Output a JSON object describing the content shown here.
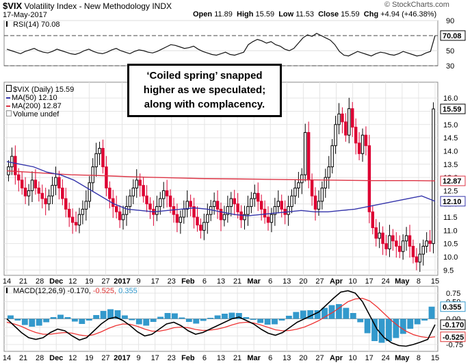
{
  "header": {
    "symbol": "$VIX",
    "name": "Volatility Index - New Methodology",
    "exchange": "INDX",
    "date": "17-May-2017",
    "open_label": "Open",
    "open": "11.89",
    "high_label": "High",
    "high": "15.59",
    "low_label": "Low",
    "low": "11.53",
    "close_label": "Close",
    "close": "15.59",
    "chg_label": "Chg",
    "chg": "+4.94 (+46.38%)",
    "brand": "© StockCharts.com"
  },
  "colors": {
    "up": "#000000",
    "down": "#dd0033",
    "ma50": "#3333aa",
    "ma200": "#dd3344",
    "rsi": "#111111",
    "macd_line": "#000000",
    "signal_line": "#ee3333",
    "histogram": "#3399cc"
  },
  "callout": {
    "line1": "‘Coiled spring’ snapped",
    "line2": "higher as we speculated;",
    "line3": "along with complacency."
  },
  "legend": {
    "rsi": "RSI(14) 70.08",
    "vix": "$VIX (Daily) 15.59",
    "ma50": "MA(50) 12.10",
    "ma200": "MA(200) 12.87",
    "volume": "Volume undef",
    "macd_prefix": "MACD(12,26,9) -0.170,",
    "macd_signal": "-0.525,",
    "macd_hist": "0.355"
  },
  "chart_data": [
    {
      "type": "candlestick",
      "title": "$VIX Volatility Index - New Methodology",
      "ylim": [
        9.3,
        16.6
      ],
      "y_ticks": [
        "9.5",
        "10.0",
        "10.5",
        "11.0",
        "11.5",
        "12.0",
        "12.5",
        "13.0",
        "13.5",
        "14.0",
        "14.5",
        "15.0",
        "15.5",
        "16.0"
      ],
      "x_ticks": [
        "14",
        "21",
        "28",
        "Dec",
        "12",
        "19",
        "27",
        "2017",
        "9",
        "17",
        "23",
        "Feb",
        "6",
        "13",
        "21",
        "Mar",
        "6",
        "13",
        "20",
        "27",
        "Apr",
        "10",
        "17",
        "24",
        "May",
        "8",
        "15"
      ],
      "closes": [
        13.4,
        13.8,
        13.1,
        12.9,
        12.6,
        12.3,
        12.5,
        12.9,
        12.6,
        12.4,
        12.2,
        12.0,
        12.3,
        12.7,
        13.0,
        12.6,
        12.2,
        11.8,
        11.5,
        11.3,
        11.2,
        11.6,
        11.8,
        12.1,
        12.8,
        13.4,
        13.9,
        14.1,
        13.4,
        12.6,
        12.2,
        11.9,
        11.7,
        11.4,
        11.6,
        11.9,
        12.3,
        12.6,
        12.9,
        12.7,
        12.3,
        12.0,
        11.8,
        11.6,
        11.9,
        12.2,
        12.5,
        12.3,
        11.9,
        11.6,
        11.3,
        11.5,
        11.8,
        12.1,
        11.9,
        11.5,
        11.2,
        11.0,
        11.3,
        11.6,
        11.9,
        12.1,
        11.8,
        11.4,
        11.6,
        11.9,
        12.2,
        12.0,
        11.7,
        11.4,
        11.6,
        11.9,
        12.2,
        12.4,
        12.1,
        11.8,
        11.5,
        11.3,
        11.6,
        11.9,
        12.1,
        11.8,
        11.6,
        11.9,
        12.3,
        12.6,
        12.8,
        13.1,
        14.7,
        12.9,
        12.3,
        11.8,
        12.1,
        12.6,
        13.0,
        13.4,
        14.2,
        15.0,
        15.4,
        15.1,
        14.6,
        15.6,
        14.9,
        14.3,
        13.9,
        14.6,
        14.2,
        11.7,
        11.1,
        10.7,
        10.9,
        10.5,
        10.3,
        10.8,
        10.6,
        10.4,
        10.2,
        10.6,
        10.8,
        10.4,
        10.0,
        9.8,
        10.1,
        10.4,
        10.6,
        10.5,
        15.59
      ],
      "ma50": [
        13.6,
        13.5,
        13.4,
        13.2,
        13.1,
        12.9,
        12.6,
        12.3,
        12.0,
        11.8,
        11.75,
        11.7,
        11.75,
        11.8,
        11.85,
        11.8,
        11.7,
        11.6,
        11.55,
        11.6,
        11.65,
        11.7,
        11.75,
        11.7,
        11.7,
        11.75,
        11.8,
        11.9,
        12.0,
        12.1,
        12.2,
        12.3,
        12.1
      ],
      "ma200": [
        13.25,
        13.2,
        13.15,
        13.1,
        13.08,
        13.05,
        13.02,
        13.0,
        12.98,
        12.96,
        12.95,
        12.94,
        12.93,
        12.92,
        12.91,
        12.9,
        12.89,
        12.88,
        12.88,
        12.88,
        12.87
      ],
      "last_close": "15.59",
      "last_ma200": "12.87",
      "last_ma50": "12.10"
    },
    {
      "type": "line",
      "title": "RSI(14) 70.08",
      "ylim": [
        30,
        90
      ],
      "y_ticks": [
        "90",
        "70",
        "50",
        "30"
      ],
      "values": [
        52,
        50,
        48,
        46,
        49,
        51,
        53,
        50,
        48,
        47,
        49,
        52,
        50,
        48,
        46,
        45,
        47,
        50,
        52,
        49,
        47,
        46,
        48,
        51,
        53,
        50,
        48,
        46,
        49,
        51,
        50,
        48,
        47,
        49,
        52,
        55,
        58,
        57,
        55,
        53,
        54,
        56,
        52,
        49,
        47,
        45,
        44,
        46,
        48,
        45,
        44,
        46,
        48,
        58,
        62,
        65,
        63,
        60,
        62,
        58,
        56,
        52,
        50,
        53,
        60,
        67,
        71,
        69,
        73,
        70,
        67,
        64,
        58,
        49,
        44,
        43,
        46,
        49,
        47,
        45,
        43,
        46,
        48,
        47,
        45,
        44,
        46,
        49,
        47,
        45,
        43,
        44,
        47,
        49,
        70.08
      ],
      "last": "70.08"
    },
    {
      "type": "macd",
      "title": "MACD(12,26,9)",
      "macd": -0.17,
      "signal": -0.525,
      "histogram": 0.355,
      "ylim": [
        -0.95,
        0.95
      ],
      "y_ticks": [
        "0.75",
        "0.50",
        "0.25",
        "0.00",
        "-0.25",
        "-0.50",
        "-0.75"
      ],
      "macd_series": [
        0.0,
        -0.2,
        -0.4,
        -0.55,
        -0.6,
        -0.55,
        -0.4,
        -0.3,
        -0.35,
        -0.5,
        -0.62,
        -0.55,
        -0.35,
        -0.15,
        0.0,
        0.05,
        -0.05,
        -0.2,
        -0.38,
        -0.5,
        -0.45,
        -0.3,
        -0.15,
        -0.1,
        -0.2,
        -0.35,
        -0.45,
        -0.4,
        -0.3,
        -0.2,
        -0.1,
        0.0,
        0.05,
        -0.05,
        -0.15,
        -0.3,
        -0.42,
        -0.48,
        -0.4,
        -0.25,
        -0.1,
        0.0,
        0.1,
        0.2,
        0.4,
        0.6,
        0.78,
        0.82,
        0.75,
        0.5,
        0.1,
        -0.3,
        -0.55,
        -0.7,
        -0.78,
        -0.8,
        -0.75,
        -0.68,
        -0.6,
        -0.17
      ],
      "signal_series": [
        -0.1,
        -0.15,
        -0.22,
        -0.32,
        -0.4,
        -0.45,
        -0.45,
        -0.42,
        -0.4,
        -0.42,
        -0.47,
        -0.5,
        -0.46,
        -0.38,
        -0.28,
        -0.2,
        -0.15,
        -0.16,
        -0.22,
        -0.3,
        -0.36,
        -0.36,
        -0.32,
        -0.26,
        -0.24,
        -0.26,
        -0.31,
        -0.34,
        -0.33,
        -0.3,
        -0.25,
        -0.18,
        -0.12,
        -0.1,
        -0.12,
        -0.18,
        -0.25,
        -0.32,
        -0.35,
        -0.34,
        -0.3,
        -0.24,
        -0.15,
        -0.05,
        0.08,
        0.2,
        0.35,
        0.5,
        0.58,
        0.6,
        0.52,
        0.35,
        0.15,
        -0.05,
        -0.22,
        -0.36,
        -0.46,
        -0.52,
        -0.55,
        -0.525
      ],
      "last_hist": "0.355",
      "last_macd": "-0.170",
      "last_signal": "-0.525"
    }
  ]
}
